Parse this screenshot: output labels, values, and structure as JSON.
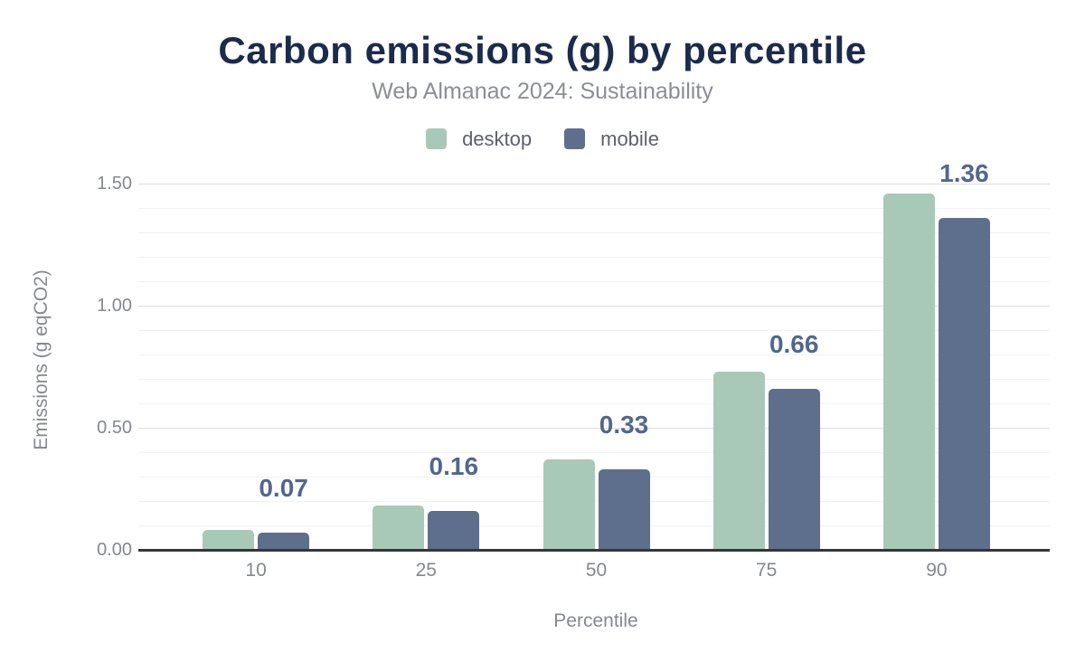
{
  "header": {
    "title": "Carbon emissions (g) by percentile",
    "subtitle": "Web Almanac 2024: Sustainability"
  },
  "legend": [
    {
      "label": "desktop",
      "color": "#a8c9b8"
    },
    {
      "label": "mobile",
      "color": "#5d6f8c"
    }
  ],
  "chart_data": {
    "type": "bar",
    "title": "Carbon emissions (g) by percentile",
    "subtitle": "Web Almanac 2024: Sustainability",
    "categories": [
      "10",
      "25",
      "50",
      "75",
      "90"
    ],
    "series": [
      {
        "name": "desktop",
        "color": "#a8c9b8",
        "values": [
          0.08,
          0.18,
          0.37,
          0.73,
          1.46
        ]
      },
      {
        "name": "mobile",
        "color": "#5d6f8c",
        "values": [
          0.07,
          0.16,
          0.33,
          0.66,
          1.36
        ]
      }
    ],
    "data_labels": {
      "on_series": "mobile",
      "values": [
        "0.07",
        "0.16",
        "0.33",
        "0.66",
        "1.36"
      ],
      "color": "#51678e"
    },
    "xlabel": "Percentile",
    "ylabel": "Emissions (g eqCO2)",
    "ylim": [
      0,
      1.5
    ],
    "yticks": [
      0,
      0.5,
      1,
      1.5
    ],
    "ytick_labels": [
      "0.00",
      "0.50",
      "1.00",
      "1.50"
    ],
    "minor_grid_step": 0.1,
    "grid": true,
    "legend_position": "top"
  }
}
